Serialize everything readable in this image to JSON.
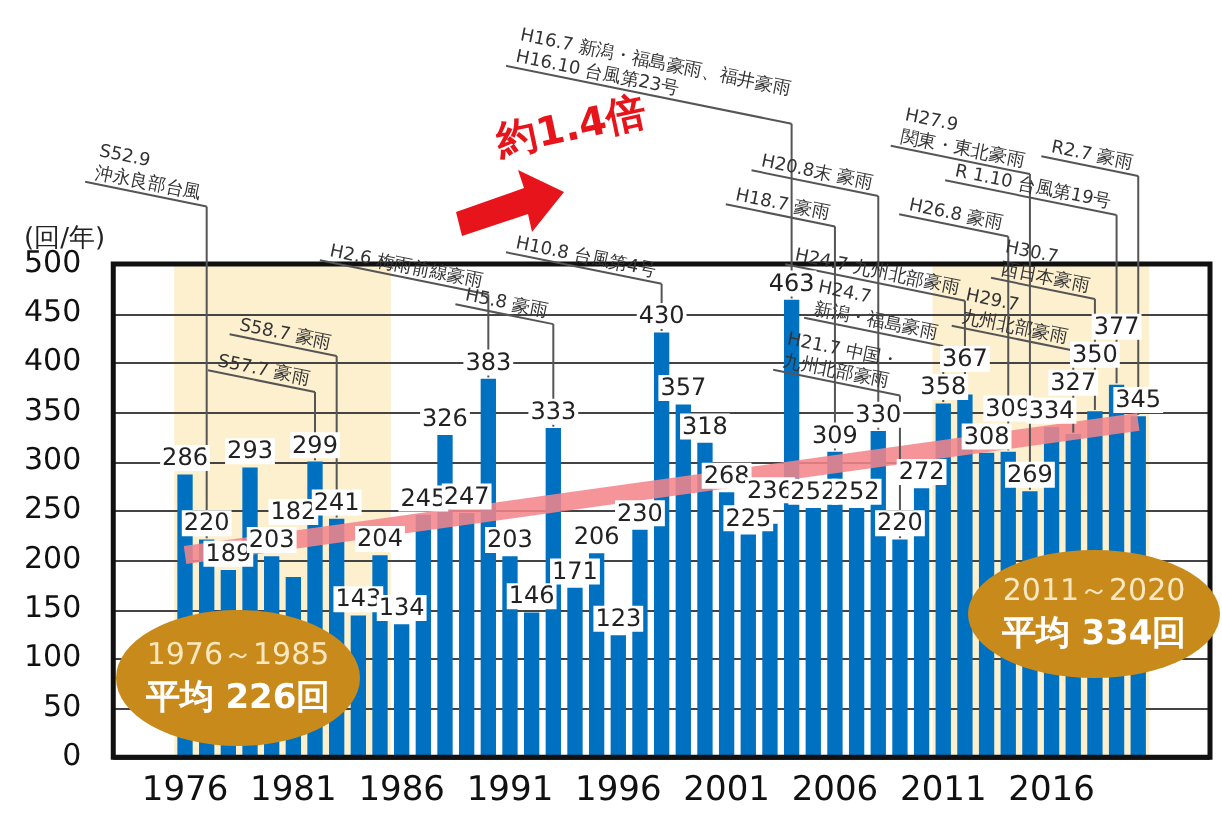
{
  "chart_data": {
    "type": "bar",
    "ylabel": "(回/年)",
    "x": [
      1976,
      1977,
      1978,
      1979,
      1980,
      1981,
      1982,
      1983,
      1984,
      1985,
      1986,
      1987,
      1988,
      1989,
      1990,
      1991,
      1992,
      1993,
      1994,
      1995,
      1996,
      1997,
      1998,
      1999,
      2000,
      2001,
      2002,
      2003,
      2004,
      2005,
      2006,
      2007,
      2008,
      2009,
      2010,
      2011,
      2012,
      2013,
      2014,
      2015,
      2016,
      2017,
      2018,
      2019,
      2020
    ],
    "series": [
      {
        "color": "#0070c0",
        "values": [
          286,
          220,
          189,
          293,
          203,
          182,
          299,
          241,
          143,
          204,
          134,
          245,
          326,
          247,
          383,
          203,
          146,
          333,
          171,
          206,
          123,
          230,
          430,
          357,
          318,
          268,
          225,
          236,
          463,
          252,
          309,
          252,
          330,
          220,
          272,
          358,
          367,
          308,
          309,
          269,
          334,
          327,
          350,
          377,
          345
        ],
        "value_labels": [
          "286",
          "220",
          "189",
          "293",
          "203",
          "182",
          "299",
          "241",
          "143",
          "204",
          "134",
          "245",
          "326",
          "247",
          "383",
          "203",
          "146",
          "333",
          "171",
          "206",
          "123",
          "230",
          "430",
          "357",
          "318",
          "268",
          "225",
          "236",
          "463",
          "252",
          "309",
          "252",
          "330",
          "220",
          "272",
          "358",
          "367",
          "308",
          "309",
          "269",
          "334",
          "327",
          "350",
          "377",
          "345"
        ]
      },
      {
        "type": "line",
        "color": "#f4858a",
        "x": [
          1976,
          2020
        ],
        "values": [
          205,
          340
        ]
      }
    ],
    "xlim": [
      1975.5,
      2020.5
    ],
    "xticks": [
      1976,
      1981,
      1986,
      1991,
      1996,
      2001,
      2006,
      2011,
      2016
    ],
    "ylim": [
      0,
      500
    ],
    "yticks": [
      0,
      50,
      100,
      150,
      200,
      250,
      300,
      350,
      400,
      450,
      500
    ],
    "grid": "y",
    "legend": false,
    "bands": [
      {
        "axis": "x",
        "from": 1975.5,
        "to": 1985.5,
        "color": "#fdf0cf"
      },
      {
        "axis": "x",
        "from": 2010.5,
        "to": 2020.5,
        "color": "#fdf0cf"
      }
    ],
    "annotations": [
      "約1.4倍",
      "1976～1985",
      "平均 226回",
      "2011～2020",
      "平均 334回",
      {
        "text": "S52.9\n沖永良部台風",
        "x": 1977,
        "y": 220
      },
      {
        "text": "S57.7 豪雨",
        "x": 1982,
        "y": 299
      },
      {
        "text": "S58.7 豪雨",
        "x": 1983,
        "y": 241
      },
      {
        "text": "H2.6 梅雨前線豪雨",
        "x": 1990,
        "y": 383
      },
      {
        "text": "H5.8 豪雨",
        "x": 1993,
        "y": 333
      },
      {
        "text": "H10.8 台風第4号",
        "x": 1998,
        "y": 430
      },
      {
        "text": "H16.7 新潟・福島豪雨、福井豪雨\nH16.10 台風第23号",
        "x": 2004,
        "y": 463
      },
      {
        "text": "H18.7 豪雨",
        "x": 2006,
        "y": 309
      },
      {
        "text": "H20.8末 豪雨",
        "x": 2008,
        "y": 330
      },
      {
        "text": "H21.7 中国・\n九州北部豪雨",
        "x": 2009,
        "y": 220
      },
      {
        "text": "H24.7 九州北部豪雨",
        "x": 2012,
        "y": 367
      },
      {
        "text": "H24.7\n新潟・福島豪雨",
        "x": 2011,
        "y": 358
      },
      {
        "text": "H26.8 豪雨",
        "x": 2014,
        "y": 309
      },
      {
        "text": "H27.9\n関東・東北豪雨",
        "x": 2015,
        "y": 269
      },
      {
        "text": "H29.7\n九州北部豪雨",
        "x": 2017,
        "y": 327
      },
      {
        "text": "H30.7\n西日本豪雨",
        "x": 2018,
        "y": 350
      },
      {
        "text": "R 1.10 台風第19号",
        "x": 2019,
        "y": 377
      },
      {
        "text": "R2.7 豪雨",
        "x": 2020,
        "y": 345
      }
    ]
  }
}
